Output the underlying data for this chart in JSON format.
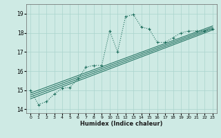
{
  "xlabel": "Humidex (Indice chaleur)",
  "ylabel": "",
  "background_color": "#ceeae4",
  "line_color": "#1a6b5a",
  "xlim": [
    -0.5,
    23.5
  ],
  "ylim": [
    13.8,
    19.5
  ],
  "yticks": [
    14,
    15,
    16,
    17,
    18,
    19
  ],
  "xticks": [
    0,
    1,
    2,
    3,
    4,
    5,
    6,
    7,
    8,
    9,
    10,
    11,
    12,
    13,
    14,
    15,
    16,
    17,
    18,
    19,
    20,
    21,
    22,
    23
  ],
  "series": [
    [
      0,
      15.0
    ],
    [
      1,
      14.25
    ],
    [
      2,
      14.4
    ],
    [
      3,
      14.8
    ],
    [
      4,
      15.1
    ],
    [
      5,
      15.15
    ],
    [
      6,
      15.6
    ],
    [
      7,
      16.2
    ],
    [
      8,
      16.3
    ],
    [
      9,
      16.3
    ],
    [
      10,
      18.1
    ],
    [
      11,
      17.0
    ],
    [
      12,
      18.85
    ],
    [
      13,
      18.95
    ],
    [
      14,
      18.3
    ],
    [
      15,
      18.2
    ],
    [
      16,
      17.5
    ],
    [
      17,
      17.5
    ],
    [
      18,
      17.75
    ],
    [
      19,
      18.0
    ],
    [
      20,
      18.1
    ],
    [
      21,
      18.1
    ],
    [
      22,
      18.1
    ],
    [
      23,
      18.2
    ]
  ],
  "linear_lines": [
    {
      "x0": 0,
      "y0": 14.55,
      "x1": 23,
      "y1": 18.15
    },
    {
      "x0": 0,
      "y0": 14.65,
      "x1": 23,
      "y1": 18.22
    },
    {
      "x0": 0,
      "y0": 14.75,
      "x1": 23,
      "y1": 18.29
    },
    {
      "x0": 0,
      "y0": 14.85,
      "x1": 23,
      "y1": 18.36
    }
  ]
}
